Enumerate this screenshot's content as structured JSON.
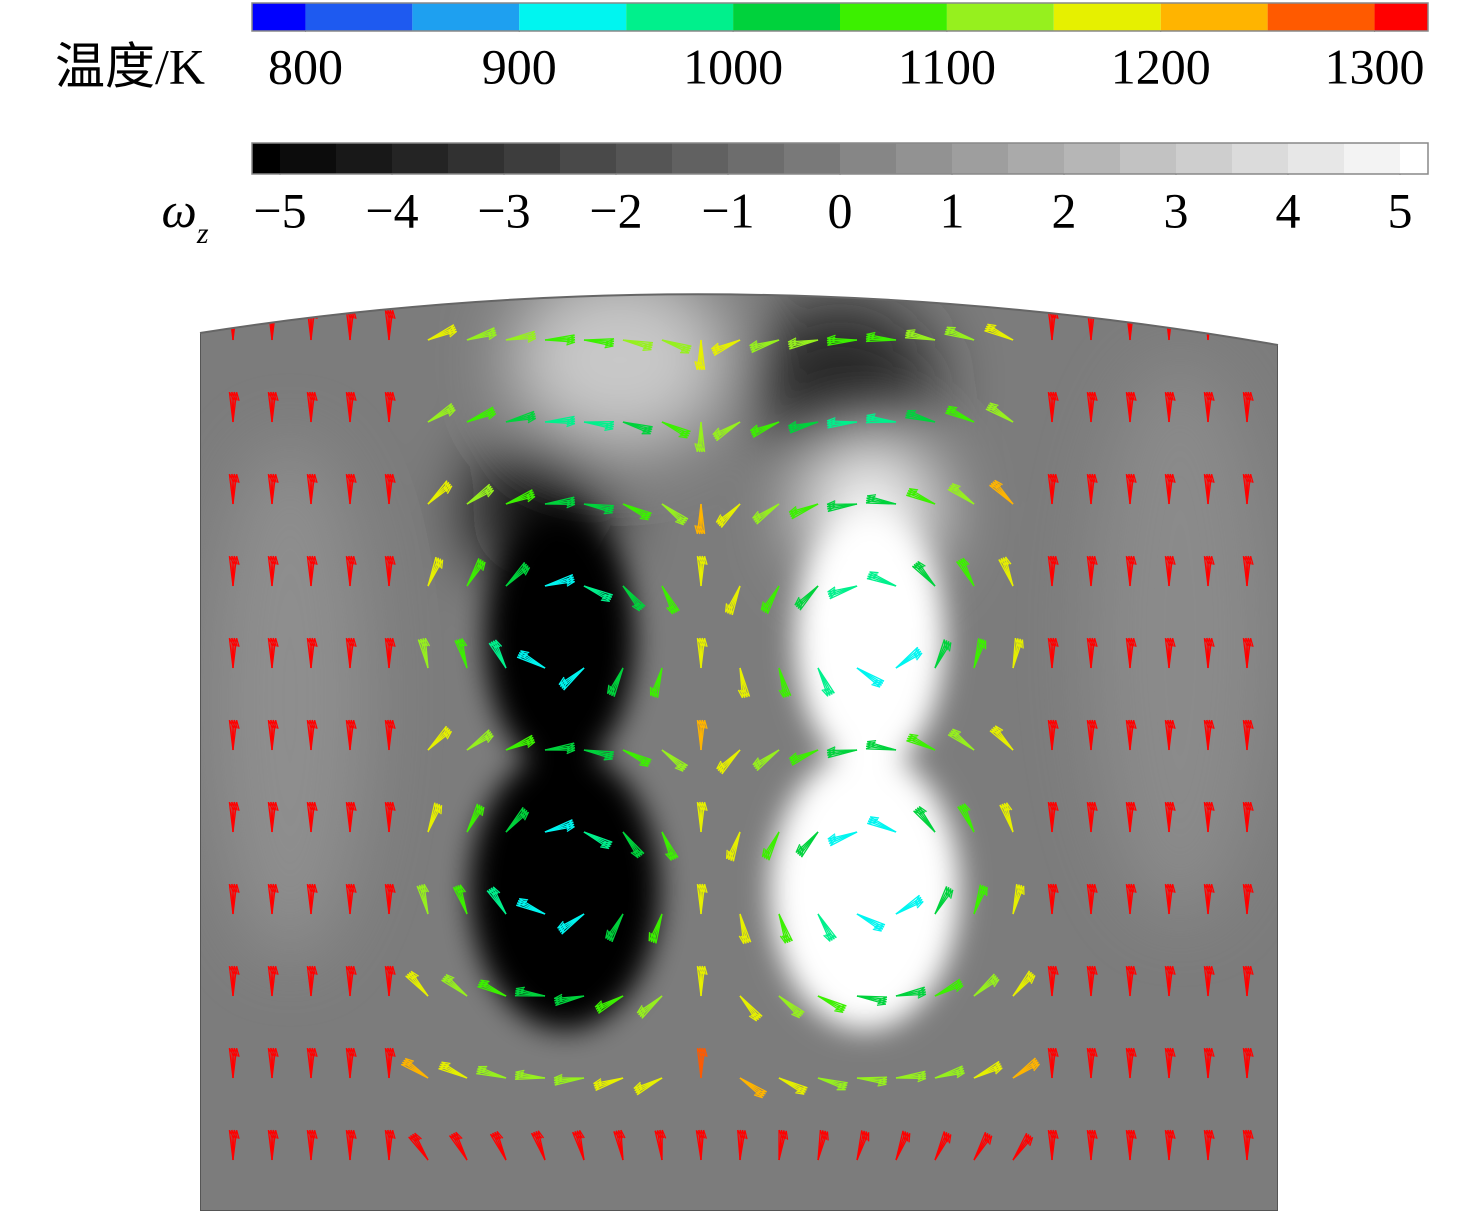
{
  "chart_data": {
    "type": "contour",
    "colorbars": [
      {
        "label": "温度/K",
        "levels": [
          775,
          800,
          850,
          900,
          950,
          1000,
          1050,
          1100,
          1150,
          1200,
          1250,
          1300,
          1325
        ],
        "colors": [
          "#0000ff",
          "#1e5af0",
          "#1ea0f0",
          "#00f5f0",
          "#00f08c",
          "#00d23c",
          "#3cf000",
          "#96f01e",
          "#e6f000",
          "#ffb400",
          "#ff5a00",
          "#ff0000"
        ],
        "lim": [
          775,
          1325
        ],
        "ticks": [
          800,
          900,
          1000,
          1100,
          1200,
          1300
        ]
      },
      {
        "label": "ω",
        "label_sub": "z",
        "levels": [
          -5.25,
          -5,
          -4.5,
          -4,
          -3.5,
          -3,
          -2.5,
          -2,
          -1.5,
          -1,
          -0.5,
          0,
          0.5,
          1,
          1.5,
          2,
          2.5,
          3,
          3.5,
          4,
          4.5,
          5,
          5.25
        ],
        "colors": [
          "#000000",
          "#0c0c0c",
          "#181818",
          "#242424",
          "#313131",
          "#3d3d3d",
          "#494949",
          "#555555",
          "#616161",
          "#6d6d6d",
          "#797979",
          "#868686",
          "#929292",
          "#9e9e9e",
          "#aaaaaa",
          "#b6b6b6",
          "#c2c2c2",
          "#cecece",
          "#dbdbdb",
          "#e7e7e7",
          "#f3f3f3",
          "#ffffff"
        ],
        "lim": [
          -5.25,
          5.25
        ],
        "ticks": [
          {
            "value": -5,
            "label": "−5"
          },
          {
            "value": -4,
            "label": "−4"
          },
          {
            "value": -3,
            "label": "−3"
          },
          {
            "value": -2,
            "label": "−2"
          },
          {
            "value": -1,
            "label": "−1"
          },
          0,
          1,
          2,
          3,
          4,
          5
        ]
      }
    ]
  }
}
